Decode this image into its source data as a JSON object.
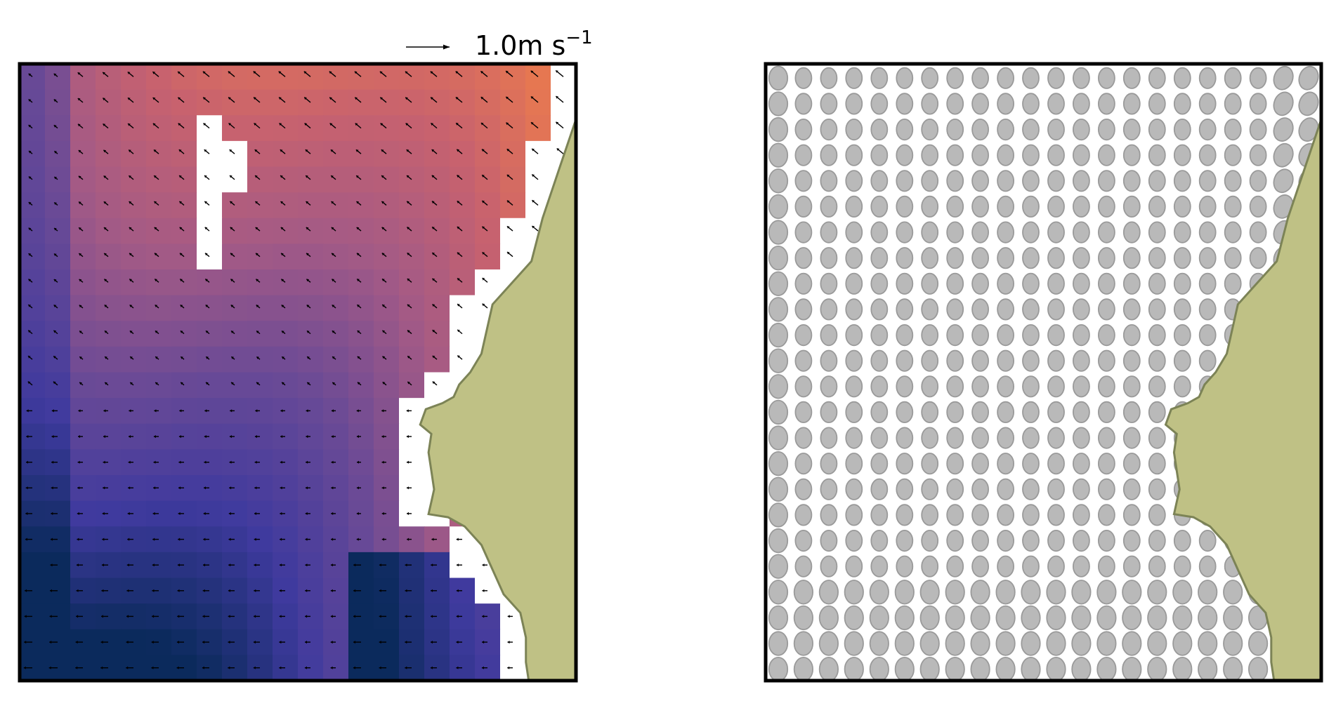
{
  "chart_data": [
    {
      "type": "heatmap",
      "title": "",
      "xlabel": "",
      "ylabel": "",
      "grid": false,
      "colormap": [
        "#0b2a5c",
        "#3f3a9e",
        "#6a4a96",
        "#a35a86",
        "#c8626e",
        "#ea7a4e",
        "#fba23a"
      ],
      "grid_shape": [
        24,
        22
      ],
      "nan_color": "#ffffff",
      "land_color": "#bfc185",
      "coast_color": "#7c8356",
      "quiver_key": {
        "value": 1.0,
        "label": "1.0m s",
        "unit_exponent": "−1"
      }
    },
    {
      "type": "scatter",
      "title": "",
      "xlabel": "",
      "ylabel": "",
      "grid": false,
      "marker": "ellipse",
      "marker_fill": "#b9b9b9",
      "marker_edge": "#9a9a9a",
      "grid_shape": [
        24,
        22
      ],
      "land_color": "#bfc185",
      "coast_color": "#7c8356"
    }
  ]
}
